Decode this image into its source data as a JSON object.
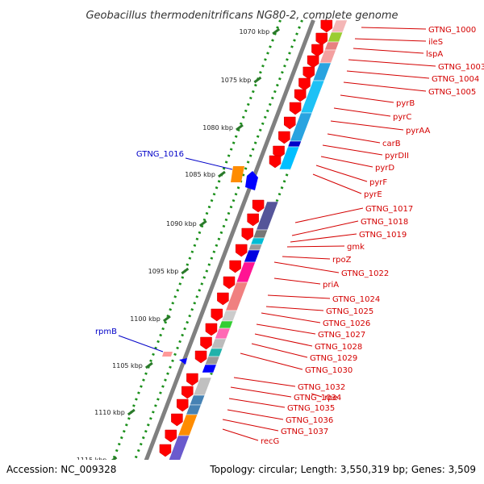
{
  "title": "Geobacillus thermodenitrificans NG80-2, complete genome",
  "footer": {
    "accession": "Accession: NC_009328",
    "summary": "Topology: circular; Length: 3,550,319 bp; Genes: 3,509"
  },
  "scale_labels": [
    "1070 kbp",
    "1075 kbp",
    "1080 kbp",
    "1085 kbp",
    "1090 kbp",
    "1095 kbp",
    "1100 kbp",
    "1105 kbp",
    "1110 kbp",
    "1115 kbp"
  ],
  "genes_right": [
    "GTNG_1000",
    "ileS",
    "lspA",
    "GTNG_1003",
    "GTNG_1004",
    "GTNG_1005",
    "pyrB",
    "pyrC",
    "pyrAA",
    "carB",
    "pyrDII",
    "pyrD",
    "pyrF",
    "pyrE",
    "GTNG_1017",
    "GTNG_1018",
    "GTNG_1019",
    "gmk",
    "rpoZ",
    "GTNG_1022",
    "priA",
    "GTNG_1024",
    "GTNG_1025",
    "GTNG_1026",
    "GTNG_1027",
    "GTNG_1028",
    "GTNG_1029",
    "GTNG_1030",
    "GTNG_1032",
    "GTNG_1034",
    "rpe",
    "GTNG_1035",
    "GTNG_1036",
    "GTNG_1037",
    "recG"
  ],
  "genes_left": [
    "GTNG_1016",
    "rpmB"
  ],
  "colors": {
    "red_label": "#d40000",
    "blue_label": "#0000c8",
    "backbone": "#808080",
    "scale_tick": "#2a7a2a",
    "gc_dots": "#1a8f1a"
  }
}
